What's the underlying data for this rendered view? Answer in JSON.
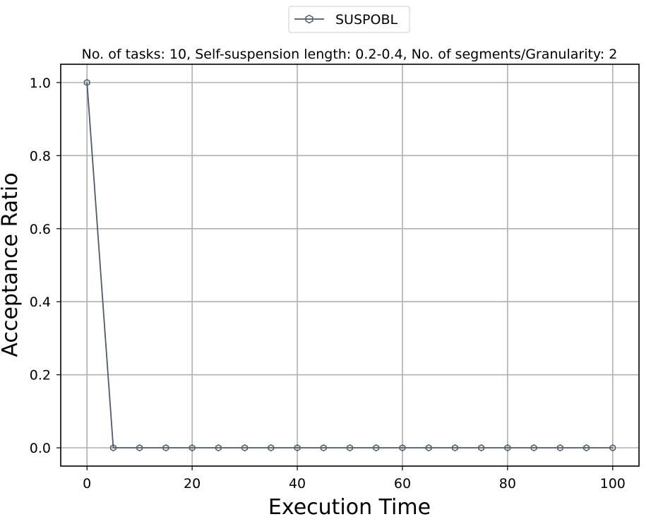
{
  "chart_data": {
    "type": "line",
    "title": "No. of tasks: 10, Self-suspension length: 0.2-0.4, No. of segments/Granularity: 2",
    "xlabel": "Execution Time",
    "ylabel": "Acceptance Ratio",
    "xlim": [
      -5,
      105
    ],
    "ylim": [
      -0.05,
      1.05
    ],
    "xticks": [
      0,
      20,
      40,
      60,
      80,
      100
    ],
    "xtick_labels": [
      "0",
      "20",
      "40",
      "60",
      "80",
      "100"
    ],
    "yticks": [
      0.0,
      0.2,
      0.4,
      0.6,
      0.8,
      1.0
    ],
    "ytick_labels": [
      "0.0",
      "0.2",
      "0.4",
      "0.6",
      "0.8",
      "1.0"
    ],
    "grid": true,
    "legend_position": "top-center",
    "series": [
      {
        "name": "SUSPOBL",
        "color": "#4d5b6b",
        "marker": "hexagon",
        "x": [
          0,
          5,
          10,
          15,
          20,
          25,
          30,
          35,
          40,
          45,
          50,
          55,
          60,
          65,
          70,
          75,
          80,
          85,
          90,
          95,
          100
        ],
        "y": [
          1.0,
          0.0,
          0.0,
          0.0,
          0.0,
          0.0,
          0.0,
          0.0,
          0.0,
          0.0,
          0.0,
          0.0,
          0.0,
          0.0,
          0.0,
          0.0,
          0.0,
          0.0,
          0.0,
          0.0,
          0.0
        ]
      }
    ]
  }
}
